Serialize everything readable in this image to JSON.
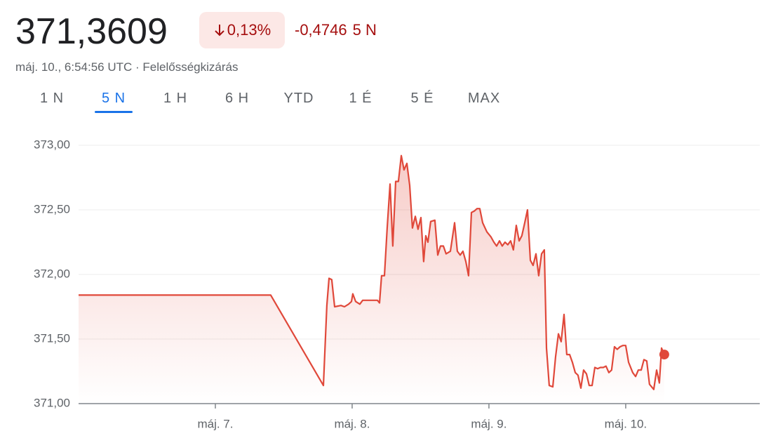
{
  "header": {
    "price": "371,3609",
    "change_percent": "0,13%",
    "change_value": "-0,4746",
    "change_period": "5 N",
    "timestamp": "máj. 10., 6:54:56 UTC · Felelősségkizárás"
  },
  "tabs": {
    "items": [
      "1 N",
      "5 N",
      "1 H",
      "6 H",
      "YTD",
      "1 É",
      "5 É",
      "MAX"
    ],
    "selected": 1
  },
  "chart_data": {
    "type": "line",
    "color": "#e0483a",
    "grid": true,
    "xlim": [
      6,
      10.98
    ],
    "ylim": [
      371,
      373
    ],
    "xticks": [
      {
        "value": 7,
        "label": "máj. 7."
      },
      {
        "value": 8,
        "label": "máj. 8."
      },
      {
        "value": 9,
        "label": "máj. 9."
      },
      {
        "value": 10,
        "label": "máj. 10."
      }
    ],
    "yticks": [
      {
        "value": 371,
        "label": "371,00"
      },
      {
        "value": 371.5,
        "label": "371,50"
      },
      {
        "value": 372,
        "label": "372,00"
      },
      {
        "value": 372.5,
        "label": "372,50"
      },
      {
        "value": 373,
        "label": "373,00"
      }
    ],
    "x": [
      6,
      7.405,
      7.79,
      7.815,
      7.831,
      7.851,
      7.872,
      7.918,
      7.944,
      7.974,
      7.995,
      8.005,
      8.026,
      8.056,
      8.077,
      8.092,
      8.144,
      8.185,
      8.2,
      8.215,
      8.236,
      8.256,
      8.277,
      8.297,
      8.318,
      8.338,
      8.359,
      8.379,
      8.4,
      8.421,
      8.441,
      8.462,
      8.482,
      8.503,
      8.523,
      8.538,
      8.554,
      8.574,
      8.605,
      8.626,
      8.646,
      8.667,
      8.687,
      8.718,
      8.749,
      8.769,
      8.79,
      8.81,
      8.831,
      8.851,
      8.872,
      8.892,
      8.913,
      8.933,
      8.954,
      8.985,
      9.015,
      9.036,
      9.056,
      9.077,
      9.097,
      9.118,
      9.138,
      9.159,
      9.179,
      9.2,
      9.221,
      9.241,
      9.262,
      9.282,
      9.303,
      9.323,
      9.344,
      9.364,
      9.385,
      9.405,
      9.421,
      9.441,
      9.467,
      9.487,
      9.508,
      9.528,
      9.549,
      9.569,
      9.59,
      9.61,
      9.631,
      9.651,
      9.672,
      9.692,
      9.713,
      9.733,
      9.754,
      9.774,
      9.795,
      9.815,
      9.836,
      9.856,
      9.877,
      9.897,
      9.918,
      9.938,
      9.959,
      9.979,
      10,
      10.021,
      10.051,
      10.072,
      10.092,
      10.113,
      10.133,
      10.154,
      10.174,
      10.205,
      10.226,
      10.246,
      10.262,
      10.282
    ],
    "values": [
      371.84,
      371.84,
      371.14,
      371.76,
      371.97,
      371.96,
      371.75,
      371.76,
      371.75,
      371.77,
      371.79,
      371.85,
      371.79,
      371.77,
      371.8,
      371.8,
      371.8,
      371.8,
      371.78,
      371.99,
      371.99,
      372.36,
      372.7,
      372.22,
      372.72,
      372.72,
      372.92,
      372.81,
      372.86,
      372.69,
      372.36,
      372.45,
      372.35,
      372.44,
      372.1,
      372.3,
      372.25,
      372.41,
      372.42,
      372.15,
      372.22,
      372.22,
      372.16,
      372.18,
      372.4,
      372.18,
      372.15,
      372.18,
      372.1,
      371.99,
      372.48,
      372.49,
      372.51,
      372.51,
      372.4,
      372.33,
      372.29,
      372.25,
      372.22,
      372.26,
      372.22,
      372.25,
      372.23,
      372.26,
      372.19,
      372.38,
      372.26,
      372.3,
      372.4,
      372.5,
      372.11,
      372.07,
      372.16,
      371.99,
      372.16,
      372.19,
      371.43,
      371.14,
      371.13,
      371.36,
      371.54,
      371.48,
      371.69,
      371.38,
      371.38,
      371.32,
      371.24,
      371.22,
      371.12,
      371.26,
      371.23,
      371.14,
      371.14,
      371.28,
      371.27,
      371.28,
      371.28,
      371.29,
      371.24,
      371.26,
      371.44,
      371.42,
      371.44,
      371.45,
      371.45,
      371.32,
      371.24,
      371.21,
      371.26,
      371.26,
      371.34,
      371.33,
      371.15,
      371.11,
      371.26,
      371.16,
      371.43,
      371.38
    ]
  }
}
